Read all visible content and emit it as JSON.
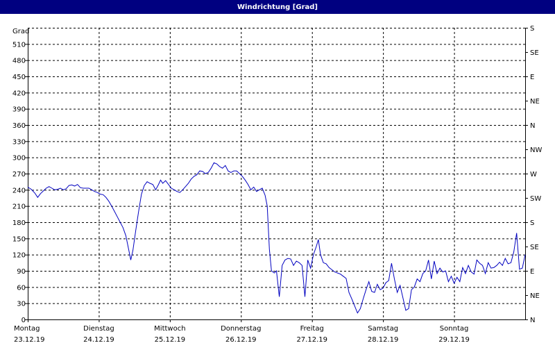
{
  "window": {
    "title": "Windrichtung [Grad]"
  },
  "colors": {
    "titlebar": "#000080",
    "line": "#0000c0",
    "grid": "#000000",
    "background": "#ffffff"
  },
  "chart_data": {
    "type": "line",
    "title": "Windrichtung [Grad]",
    "ylabel": "Grad",
    "ylim": [
      0,
      540
    ],
    "yticks": [
      0,
      30,
      60,
      90,
      120,
      150,
      180,
      210,
      240,
      270,
      300,
      330,
      360,
      390,
      420,
      450,
      480,
      510
    ],
    "right_labels": [
      {
        "value": 0,
        "label": "N"
      },
      {
        "value": 45,
        "label": "NE"
      },
      {
        "value": 90,
        "label": "E"
      },
      {
        "value": 135,
        "label": "SE"
      },
      {
        "value": 180,
        "label": "S"
      },
      {
        "value": 225,
        "label": "SW"
      },
      {
        "value": 270,
        "label": "W"
      },
      {
        "value": 315,
        "label": "NW"
      },
      {
        "value": 360,
        "label": "N"
      },
      {
        "value": 405,
        "label": "NE"
      },
      {
        "value": 450,
        "label": "E"
      },
      {
        "value": 495,
        "label": "SE"
      },
      {
        "value": 540,
        "label": "S"
      }
    ],
    "days": [
      {
        "day": "Montag",
        "date": "23.12.19"
      },
      {
        "day": "Dienstag",
        "date": "24.12.19"
      },
      {
        "day": "Mittwoch",
        "date": "25.12.19"
      },
      {
        "day": "Donnerstag",
        "date": "26.12.19"
      },
      {
        "day": "Freitag",
        "date": "27.12.19"
      },
      {
        "day": "Samstag",
        "date": "28.12.19"
      },
      {
        "day": "Sonntag",
        "date": "29.12.19"
      }
    ],
    "xlim": [
      0,
      7
    ],
    "grid": true,
    "series": [
      {
        "points": [
          [
            0.0,
            245
          ],
          [
            0.05,
            241
          ],
          [
            0.1,
            234
          ],
          [
            0.14,
            226
          ],
          [
            0.18,
            233
          ],
          [
            0.22,
            238
          ],
          [
            0.26,
            243
          ],
          [
            0.3,
            246
          ],
          [
            0.34,
            243
          ],
          [
            0.38,
            240
          ],
          [
            0.42,
            241
          ],
          [
            0.46,
            243
          ],
          [
            0.5,
            240
          ],
          [
            0.54,
            242
          ],
          [
            0.58,
            248
          ],
          [
            0.62,
            249
          ],
          [
            0.66,
            247
          ],
          [
            0.7,
            250
          ],
          [
            0.74,
            244
          ],
          [
            0.78,
            243
          ],
          [
            0.82,
            243
          ],
          [
            0.86,
            243
          ],
          [
            0.9,
            240
          ],
          [
            0.94,
            237
          ],
          [
            0.98,
            235
          ],
          [
            1.02,
            232
          ],
          [
            1.06,
            231
          ],
          [
            1.1,
            226
          ],
          [
            1.14,
            219
          ],
          [
            1.18,
            210
          ],
          [
            1.22,
            200
          ],
          [
            1.26,
            190
          ],
          [
            1.3,
            180
          ],
          [
            1.34,
            170
          ],
          [
            1.38,
            155
          ],
          [
            1.42,
            130
          ],
          [
            1.45,
            110
          ],
          [
            1.48,
            128
          ],
          [
            1.52,
            165
          ],
          [
            1.56,
            200
          ],
          [
            1.6,
            232
          ],
          [
            1.64,
            248
          ],
          [
            1.68,
            255
          ],
          [
            1.72,
            252
          ],
          [
            1.76,
            250
          ],
          [
            1.8,
            240
          ],
          [
            1.84,
            250
          ],
          [
            1.87,
            258
          ],
          [
            1.9,
            252
          ],
          [
            1.94,
            257
          ],
          [
            1.98,
            250
          ],
          [
            2.02,
            243
          ],
          [
            2.06,
            240
          ],
          [
            2.1,
            237
          ],
          [
            2.14,
            235
          ],
          [
            2.18,
            240
          ],
          [
            2.22,
            246
          ],
          [
            2.26,
            252
          ],
          [
            2.3,
            260
          ],
          [
            2.34,
            265
          ],
          [
            2.38,
            268
          ],
          [
            2.42,
            275
          ],
          [
            2.46,
            274
          ],
          [
            2.5,
            270
          ],
          [
            2.54,
            272
          ],
          [
            2.58,
            280
          ],
          [
            2.62,
            290
          ],
          [
            2.66,
            288
          ],
          [
            2.7,
            283
          ],
          [
            2.74,
            280
          ],
          [
            2.78,
            285
          ],
          [
            2.82,
            275
          ],
          [
            2.86,
            272
          ],
          [
            2.9,
            275
          ],
          [
            2.94,
            275
          ],
          [
            2.98,
            270
          ],
          [
            3.02,
            265
          ],
          [
            3.06,
            258
          ],
          [
            3.1,
            250
          ],
          [
            3.14,
            240
          ],
          [
            3.18,
            245
          ],
          [
            3.22,
            237
          ],
          [
            3.26,
            240
          ],
          [
            3.3,
            243
          ],
          [
            3.34,
            230
          ],
          [
            3.37,
            210
          ],
          [
            3.4,
            130
          ],
          [
            3.43,
            90
          ],
          [
            3.47,
            86
          ],
          [
            3.5,
            90
          ],
          [
            3.54,
            42
          ],
          [
            3.58,
            100
          ],
          [
            3.62,
            110
          ],
          [
            3.66,
            113
          ],
          [
            3.7,
            112
          ],
          [
            3.74,
            100
          ],
          [
            3.78,
            108
          ],
          [
            3.82,
            105
          ],
          [
            3.86,
            100
          ],
          [
            3.9,
            42
          ],
          [
            3.94,
            110
          ],
          [
            3.98,
            95
          ],
          [
            4.02,
            120
          ],
          [
            4.06,
            135
          ],
          [
            4.09,
            148
          ],
          [
            4.12,
            120
          ],
          [
            4.16,
            105
          ],
          [
            4.2,
            103
          ],
          [
            4.24,
            96
          ],
          [
            4.28,
            92
          ],
          [
            4.32,
            88
          ],
          [
            4.36,
            86
          ],
          [
            4.4,
            84
          ],
          [
            4.44,
            80
          ],
          [
            4.48,
            76
          ],
          [
            4.52,
            50
          ],
          [
            4.56,
            38
          ],
          [
            4.6,
            25
          ],
          [
            4.64,
            12
          ],
          [
            4.68,
            20
          ],
          [
            4.72,
            38
          ],
          [
            4.76,
            55
          ],
          [
            4.8,
            70
          ],
          [
            4.84,
            52
          ],
          [
            4.88,
            50
          ],
          [
            4.92,
            65
          ],
          [
            4.96,
            55
          ],
          [
            5.0,
            58
          ],
          [
            5.04,
            68
          ],
          [
            5.08,
            72
          ],
          [
            5.12,
            104
          ],
          [
            5.16,
            75
          ],
          [
            5.2,
            50
          ],
          [
            5.24,
            63
          ],
          [
            5.28,
            40
          ],
          [
            5.32,
            17
          ],
          [
            5.36,
            20
          ],
          [
            5.4,
            55
          ],
          [
            5.44,
            60
          ],
          [
            5.48,
            75
          ],
          [
            5.52,
            70
          ],
          [
            5.56,
            85
          ],
          [
            5.6,
            90
          ],
          [
            5.64,
            110
          ],
          [
            5.68,
            75
          ],
          [
            5.72,
            108
          ],
          [
            5.76,
            85
          ],
          [
            5.8,
            95
          ],
          [
            5.84,
            88
          ],
          [
            5.88,
            90
          ],
          [
            5.92,
            70
          ],
          [
            5.96,
            80
          ],
          [
            6.0,
            67
          ],
          [
            6.04,
            78
          ],
          [
            6.08,
            70
          ],
          [
            6.12,
            96
          ],
          [
            6.16,
            85
          ],
          [
            6.2,
            100
          ],
          [
            6.24,
            88
          ],
          [
            6.28,
            84
          ],
          [
            6.32,
            110
          ],
          [
            6.36,
            104
          ],
          [
            6.4,
            100
          ],
          [
            6.44,
            85
          ],
          [
            6.48,
            105
          ],
          [
            6.52,
            95
          ],
          [
            6.56,
            96
          ],
          [
            6.6,
            100
          ],
          [
            6.64,
            106
          ],
          [
            6.68,
            100
          ],
          [
            6.72,
            113
          ],
          [
            6.76,
            103
          ],
          [
            6.8,
            105
          ],
          [
            6.84,
            125
          ],
          [
            6.88,
            160
          ],
          [
            6.92,
            93
          ],
          [
            6.96,
            95
          ],
          [
            7.0,
            120
          ]
        ]
      }
    ]
  }
}
